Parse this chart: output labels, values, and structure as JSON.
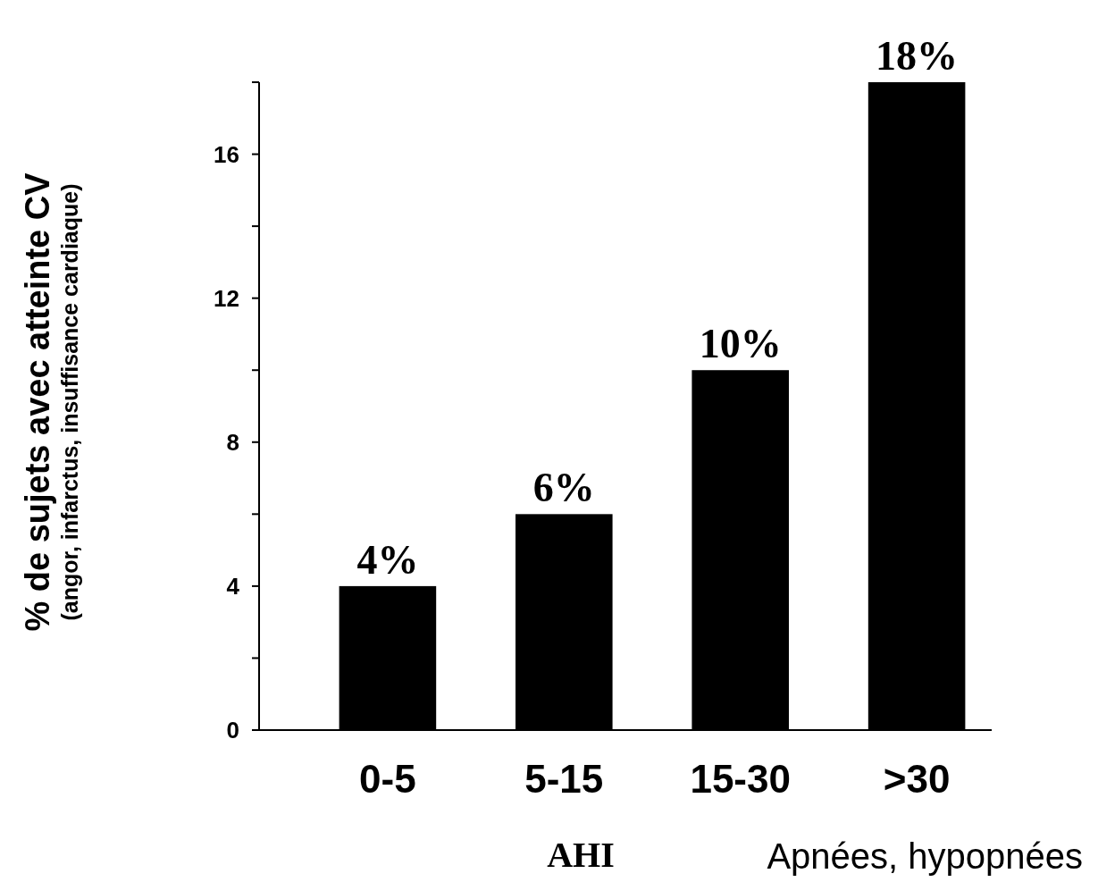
{
  "chart_data": {
    "type": "bar",
    "xlabel": "AHI",
    "ylabel": "% de sujets avec atteinte CV\n(angor, infarctus, insuffisance cardiaque)",
    "categories": [
      "0-5",
      "5-15",
      "15-30",
      ">30"
    ],
    "values": [
      4,
      6,
      10,
      18
    ],
    "value_labels": [
      "4%",
      "6%",
      "10%",
      "18%"
    ],
    "color": "#000000",
    "ylim": [
      0,
      18
    ],
    "yticks": [
      0,
      {
        "value": 2,
        "label": null
      },
      4,
      {
        "value": 6,
        "label": null
      },
      8,
      {
        "value": 10,
        "label": null
      },
      12,
      {
        "value": 14,
        "label": null
      },
      16,
      {
        "value": 18,
        "label": null
      }
    ],
    "grid": false,
    "annotations": [
      "Apnées, hypopnées"
    ]
  }
}
